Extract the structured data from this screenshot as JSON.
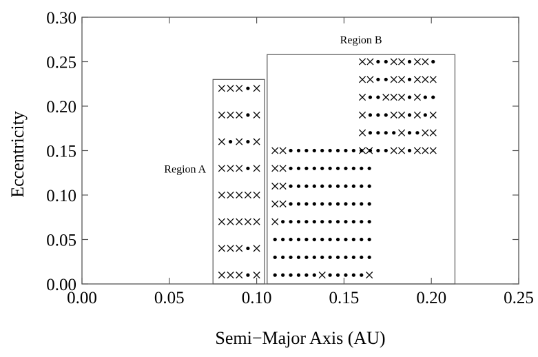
{
  "chart_data": {
    "type": "scatter",
    "title": "",
    "xlabel": "Semi−Major Axis (AU)",
    "ylabel": "Eccentricity",
    "xlim": [
      0,
      0.25
    ],
    "ylim": [
      0,
      0.3
    ],
    "xticks": [
      "0.00",
      "0.05",
      "0.10",
      "0.15",
      "0.20",
      "0.25"
    ],
    "yticks": [
      "0.00",
      "0.05",
      "0.10",
      "0.15",
      "0.20",
      "0.25",
      "0.30"
    ],
    "grid": false,
    "legend": "none",
    "colors": {
      "axis": "#555555",
      "marker": "#000000",
      "region_border": "#555555"
    },
    "regions": [
      {
        "name": "Region A",
        "x": [
          0.075,
          0.1045
        ],
        "y": [
          0.0,
          0.23
        ]
      },
      {
        "name": "Region B",
        "x": [
          0.106,
          0.2135
        ],
        "y": [
          0.0,
          0.258
        ]
      }
    ],
    "marker_legend": {
      "x": "cross",
      "o": "dot"
    },
    "grids": [
      {
        "x0": 0.08,
        "dx": 0.005,
        "y_values": [
          0.22,
          0.19,
          0.16,
          0.13,
          0.1,
          0.07,
          0.04,
          0.01
        ],
        "rows": [
          "XXXoX",
          "XXXoX",
          "XoXoX",
          "XXXoX",
          "XXXXX",
          "XXXXX",
          "XXXoX",
          "XXXoX"
        ]
      },
      {
        "x0": 0.1105,
        "dx": 0.0045,
        "y_values": [
          0.15,
          0.13,
          0.11,
          0.09,
          0.07,
          0.05,
          0.03,
          0.01
        ],
        "rows": [
          "XXooooooooooX",
          "XXooooooooooo",
          "XXooooooooooo",
          "XXooooooooooo",
          "Xoooooooooooo",
          "ooooooooooooo",
          "ooooooooooooo",
          "ooooooXoooooX"
        ]
      },
      {
        "x0": 0.1605,
        "dx": 0.0045,
        "y_values": [
          0.25,
          0.23,
          0.21,
          0.19,
          0.17,
          0.15
        ],
        "rows": [
          "XXooXXoXXo",
          "XXooXXoXXX",
          "XooXXXoXoo",
          "XoooXXoXoX",
          "XooooXooXX",
          "XoooXXoXXX"
        ]
      }
    ]
  }
}
